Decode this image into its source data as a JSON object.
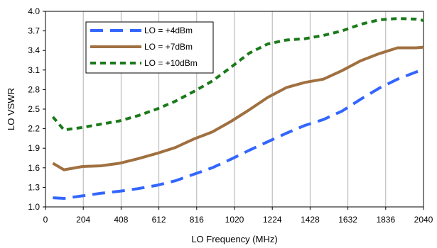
{
  "chart_data": {
    "type": "line",
    "xlabel": "LO Frequency (MHz)",
    "ylabel": "LO VSWR",
    "xlim": [
      0,
      2040
    ],
    "ylim": [
      1.0,
      4.0
    ],
    "x_ticks": [
      "0",
      "204",
      "408",
      "612",
      "816",
      "1020",
      "1224",
      "1428",
      "1632",
      "1836",
      "2040"
    ],
    "y_ticks": [
      "1.0",
      "1.3",
      "1.6",
      "1.9",
      "2.2",
      "2.5",
      "2.8",
      "3.1",
      "3.4",
      "3.7",
      "4.0"
    ],
    "grid": "vertical",
    "legend_position": "top-left",
    "series": [
      {
        "name": "LO = +4dBm",
        "color": "#3366ff",
        "style": "long-dash",
        "x": [
          40,
          100,
          200,
          300,
          400,
          500,
          600,
          700,
          800,
          900,
          1000,
          1100,
          1200,
          1300,
          1400,
          1500,
          1600,
          1700,
          1800,
          1900,
          2000,
          2040
        ],
        "y": [
          1.14,
          1.13,
          1.17,
          1.21,
          1.24,
          1.28,
          1.33,
          1.4,
          1.5,
          1.6,
          1.73,
          1.87,
          2.0,
          2.13,
          2.25,
          2.34,
          2.47,
          2.65,
          2.82,
          2.96,
          3.07,
          3.1
        ]
      },
      {
        "name": "LO = +7dBm",
        "color": "#a07040",
        "style": "solid",
        "x": [
          40,
          100,
          200,
          300,
          400,
          500,
          600,
          700,
          800,
          900,
          1000,
          1100,
          1200,
          1300,
          1400,
          1500,
          1600,
          1700,
          1800,
          1900,
          2000,
          2040
        ],
        "y": [
          1.67,
          1.57,
          1.62,
          1.63,
          1.67,
          1.74,
          1.82,
          1.91,
          2.04,
          2.15,
          2.31,
          2.49,
          2.68,
          2.83,
          2.91,
          2.96,
          3.09,
          3.24,
          3.35,
          3.44,
          3.44,
          3.45
        ]
      },
      {
        "name": "LO = +10dBm",
        "color": "#1a7a1a",
        "style": "short-dash",
        "x": [
          40,
          100,
          200,
          300,
          400,
          500,
          600,
          700,
          800,
          900,
          1000,
          1100,
          1200,
          1300,
          1400,
          1500,
          1600,
          1700,
          1800,
          1900,
          2000,
          2040
        ],
        "y": [
          2.38,
          2.18,
          2.22,
          2.27,
          2.32,
          2.4,
          2.5,
          2.62,
          2.77,
          2.93,
          3.14,
          3.36,
          3.5,
          3.56,
          3.58,
          3.63,
          3.7,
          3.8,
          3.87,
          3.89,
          3.88,
          3.86
        ]
      }
    ]
  }
}
